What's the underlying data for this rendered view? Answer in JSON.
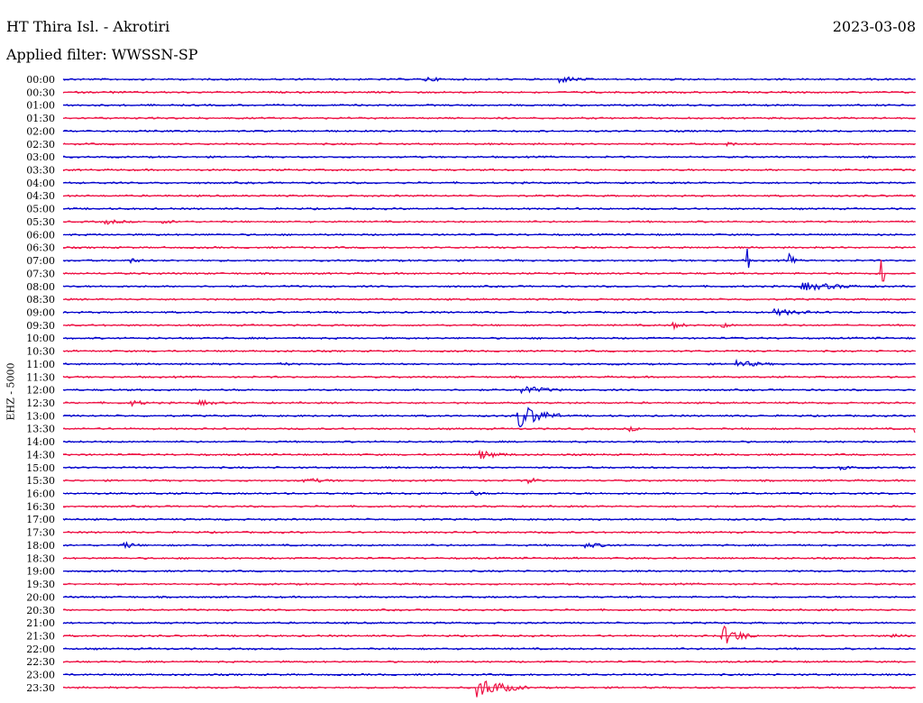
{
  "header": {
    "station": "HT Thira Isl. - Akrotiri",
    "date": "2023-03-08",
    "filter_label": "Applied filter: WWSSN-SP"
  },
  "channel_label": "EHZ - 5000",
  "colors": {
    "odd_trace": "#0000cc",
    "even_trace": "#ee1144"
  },
  "chart_data": {
    "type": "line",
    "title": "HT Thira Isl. - Akrotiri",
    "subtitle": "Applied filter: WWSSN-SP",
    "ylabel": "EHZ - 5000",
    "xlabel": "",
    "grid": false,
    "rows": [
      "00:00",
      "00:30",
      "01:00",
      "01:30",
      "02:00",
      "02:30",
      "03:00",
      "03:30",
      "04:00",
      "04:30",
      "05:00",
      "05:30",
      "06:00",
      "06:30",
      "07:00",
      "07:30",
      "08:00",
      "08:30",
      "09:00",
      "09:30",
      "10:00",
      "10:30",
      "11:00",
      "11:30",
      "12:00",
      "12:30",
      "13:00",
      "13:30",
      "14:00",
      "14:30",
      "15:00",
      "15:30",
      "16:00",
      "16:30",
      "17:00",
      "17:30",
      "18:00",
      "18:30",
      "19:00",
      "19:30",
      "20:00",
      "20:30",
      "21:00",
      "21:30",
      "22:00",
      "22:30",
      "23:00",
      "23:30"
    ],
    "row_minutes": 30,
    "events": [
      {
        "row": 0,
        "minute": 12.8,
        "amp": 3,
        "dur": 1.2
      },
      {
        "row": 0,
        "minute": 17.5,
        "amp": 4,
        "dur": 1.5
      },
      {
        "row": 1,
        "minute": 1.5,
        "amp": 1.5,
        "dur": 2.5
      },
      {
        "row": 5,
        "minute": 23.4,
        "amp": 3,
        "dur": 0.6
      },
      {
        "row": 11,
        "minute": 1.5,
        "amp": 3,
        "dur": 1.5
      },
      {
        "row": 11,
        "minute": 3.5,
        "amp": 2,
        "dur": 2
      },
      {
        "row": 14,
        "minute": 2.4,
        "amp": 3,
        "dur": 0.8
      },
      {
        "row": 14,
        "minute": 24.1,
        "amp": 14,
        "dur": 0.1
      },
      {
        "row": 14,
        "minute": 25.6,
        "amp": 8,
        "dur": 0.2
      },
      {
        "row": 15,
        "minute": 28.8,
        "amp": 40,
        "dur": 0.1
      },
      {
        "row": 16,
        "minute": 26,
        "amp": 5,
        "dur": 3
      },
      {
        "row": 18,
        "minute": 25,
        "amp": 4,
        "dur": 2.5
      },
      {
        "row": 19,
        "minute": 21.5,
        "amp": 4,
        "dur": 0.8
      },
      {
        "row": 19,
        "minute": 23.2,
        "amp": 3,
        "dur": 0.8
      },
      {
        "row": 22,
        "minute": 7.5,
        "amp": 3,
        "dur": 1
      },
      {
        "row": 22,
        "minute": 23.7,
        "amp": 4,
        "dur": 2
      },
      {
        "row": 24,
        "minute": 16.1,
        "amp": 5,
        "dur": 2
      },
      {
        "row": 25,
        "minute": 2.4,
        "amp": 4,
        "dur": 1
      },
      {
        "row": 25,
        "minute": 4.8,
        "amp": 3,
        "dur": 1.5
      },
      {
        "row": 26,
        "minute": 16.0,
        "amp": 16,
        "dur": 1.5
      },
      {
        "row": 27,
        "minute": 19.9,
        "amp": 3,
        "dur": 1
      },
      {
        "row": 27,
        "minute": 30,
        "amp": 5,
        "dur": 0.8
      },
      {
        "row": 29,
        "minute": 14.7,
        "amp": 5,
        "dur": 1.5
      },
      {
        "row": 30,
        "minute": 27.4,
        "amp": 4,
        "dur": 0.6
      },
      {
        "row": 31,
        "minute": 8.5,
        "amp": 3,
        "dur": 2
      },
      {
        "row": 31,
        "minute": 16.4,
        "amp": 4,
        "dur": 0.6
      },
      {
        "row": 32,
        "minute": 14.4,
        "amp": 3,
        "dur": 0.8
      },
      {
        "row": 36,
        "minute": 2.2,
        "amp": 4,
        "dur": 0.8
      },
      {
        "row": 36,
        "minute": 18.4,
        "amp": 3,
        "dur": 2
      },
      {
        "row": 43,
        "minute": 23.2,
        "amp": 12,
        "dur": 1.2
      },
      {
        "row": 43,
        "minute": 29.2,
        "amp": 3,
        "dur": 1
      },
      {
        "row": 47,
        "minute": 14.6,
        "amp": 12,
        "dur": 1.8
      }
    ]
  }
}
